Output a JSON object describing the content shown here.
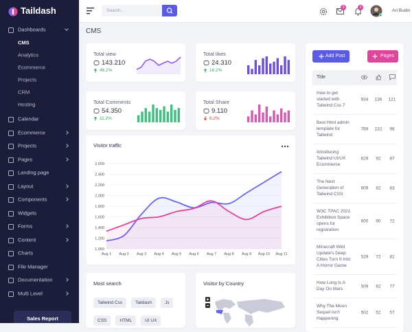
{
  "sidebar": {
    "brand": "Taildash",
    "menu": [
      {
        "label": "Dashboards",
        "open": true,
        "children": [
          "CMS",
          "Analytics",
          "Ecommerce",
          "Projects",
          "CRM",
          "Hosting"
        ],
        "active_child": 0
      },
      {
        "label": "Calendar",
        "submenu": false
      },
      {
        "label": "Ecommerce",
        "submenu": true
      },
      {
        "label": "Projects",
        "submenu": true
      },
      {
        "label": "Pages",
        "submenu": true
      },
      {
        "label": "Landing page",
        "submenu": false
      },
      {
        "label": "Layout",
        "submenu": true
      },
      {
        "label": "Components",
        "submenu": true
      },
      {
        "label": "Widgets",
        "submenu": false
      },
      {
        "label": "Forms",
        "submenu": true
      },
      {
        "label": "Content",
        "submenu": true
      },
      {
        "label": "Charts",
        "submenu": false
      },
      {
        "label": "File Manager",
        "submenu": false
      },
      {
        "label": "Documentation",
        "submenu": true
      },
      {
        "label": "Multi Level",
        "submenu": true
      }
    ],
    "button": "Sales Report"
  },
  "topbar": {
    "search_placeholder": "Search...",
    "mail_badge": 3,
    "bell_badge": 1,
    "user": "Ari Budin"
  },
  "page_title": "CMS",
  "stats": [
    {
      "label": "Total view",
      "value": "143.210",
      "change": "46.2%",
      "direction": "up",
      "color": "#8b5cf6",
      "spark_type": "line",
      "spark": [
        2,
        3,
        6,
        7,
        6,
        4,
        5,
        6,
        5,
        6,
        8
      ]
    },
    {
      "label": "Total likes",
      "value": "24.310",
      "change": "16.2%",
      "direction": "up",
      "color": "#6d4fe0",
      "spark_type": "bar",
      "spark": [
        5,
        3,
        8,
        5,
        9,
        10,
        6,
        7,
        9,
        5,
        10,
        8
      ]
    },
    {
      "label": "Total Comments",
      "value": "54.350",
      "change": "11.2%",
      "direction": "up",
      "color": "#3fbf7f",
      "spark_type": "bar",
      "spark": [
        4,
        6,
        8,
        6,
        10,
        8,
        7,
        9,
        6,
        10,
        7,
        8
      ]
    },
    {
      "label": "Total Share",
      "value": "9.110",
      "change": "6.2%",
      "direction": "down",
      "color": "#d45bb5",
      "spark_type": "bar",
      "spark": [
        3,
        6,
        4,
        9,
        5,
        8,
        3,
        6,
        4,
        7,
        5,
        6
      ]
    }
  ],
  "chart_data": {
    "type": "line",
    "title": "Visitor traffic",
    "categories": [
      "Aug 1",
      "Aug 2",
      "Aug 3",
      "Aug 4",
      "Aug 5",
      "Aug 6",
      "Aug 7",
      "Aug 8",
      "Aug 9",
      "Aug 10",
      "Aug 11"
    ],
    "series": [
      {
        "color": "#6366f1",
        "values": [
          1150,
          1250,
          1650,
          1950,
          1880,
          1770,
          1870,
          1850,
          2050,
          2250,
          2450
        ]
      },
      {
        "color": "#e0449b",
        "values": [
          1330,
          1450,
          1570,
          1600,
          1700,
          1760,
          1900,
          1700,
          1550,
          1700,
          1800
        ]
      }
    ],
    "ylim": [
      1000,
      2600
    ],
    "yticks": [
      {
        "value": 1000,
        "label": "1,000"
      },
      {
        "value": 1200,
        "label": "1,200"
      },
      {
        "value": 1400,
        "label": "1,400"
      },
      {
        "value": 1600,
        "label": "1,600"
      },
      {
        "value": 1800,
        "label": "1,800"
      },
      {
        "value": 2000,
        "label": "2,000"
      },
      {
        "value": 2200,
        "label": "2,200"
      },
      {
        "value": 2400,
        "label": "2,400"
      },
      {
        "value": 2600,
        "label": "2,600"
      }
    ],
    "grid": true
  },
  "posts": {
    "add_button": "Add Post",
    "pages_button": "Pages",
    "header": "Title",
    "rows": [
      [
        "How to get started with Tailwind Css 7",
        934,
        136,
        121
      ],
      [
        "Best Html admin template for Tailwind",
        789,
        132,
        98
      ],
      [
        "Introducing Tailwind UI/UX Ecommerce",
        629,
        92,
        87
      ],
      [
        "The Next Generation of Tailwind CSS",
        609,
        82,
        83
      ],
      [
        "W3C TPAC 2021 Exhibition Space opens for registration",
        600,
        90,
        72
      ],
      [
        "Minecraft Wild Update's Deep Cities Turn It Into A Horror Game",
        529,
        72,
        81
      ],
      [
        "How Long Is A Day On Mars",
        509,
        62,
        77
      ],
      [
        "Why The Moon Sequel Isn't Happening",
        502,
        52,
        57
      ]
    ]
  },
  "most_search": {
    "title": "Most search",
    "tags": [
      "Tailwind Css",
      "Taildash",
      "Js",
      "CSS",
      "HTML",
      "UI UX"
    ]
  },
  "country": {
    "title": "Visitor by Country"
  }
}
